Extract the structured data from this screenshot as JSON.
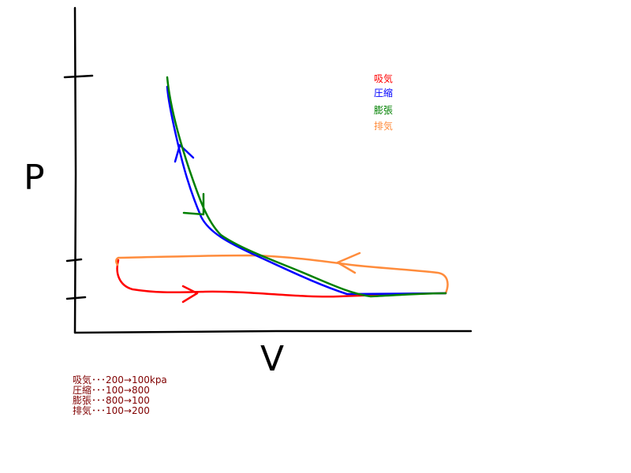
{
  "axes": {
    "y_label": "P",
    "x_label": "V"
  },
  "legend": [
    "吸気",
    "圧縮",
    "膨張",
    "排気"
  ],
  "notes": [
    "吸気･･･200→100kpa",
    "圧縮･･･100→800",
    "膨張･･･800→100",
    "排気･･･100→200"
  ]
}
